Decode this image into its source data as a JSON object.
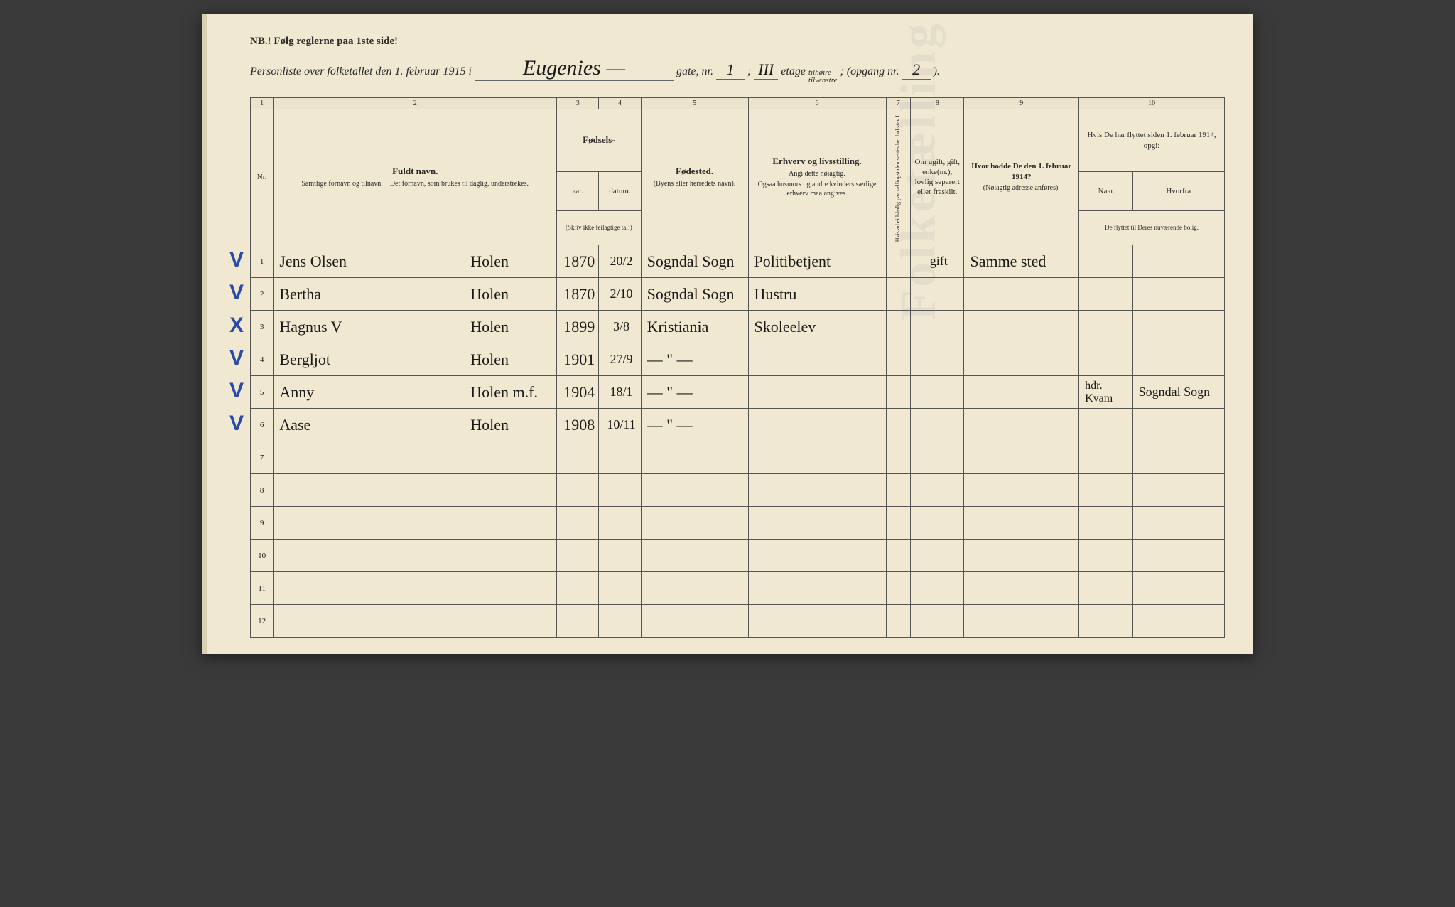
{
  "page": {
    "background_color": "#f0e8d0",
    "ink_color": "#1a1a1a",
    "print_color": "#2a2a2a",
    "blue_mark_color": "#2a4aa8"
  },
  "nb_text": "NB.! Følg reglerne paa 1ste side!",
  "header": {
    "prefix": "Personliste over folketallet den 1. februar 1915 i",
    "street": "Eugenies —",
    "gate_label": "gate, nr.",
    "gate_nr": "1",
    "semicolon": ";",
    "etage_val": "III",
    "etage_label": "etage",
    "side_top": "tilhøire",
    "side_bottom": "tilvenstre",
    "opgang_label": "; (opgang nr.",
    "opgang_nr": "2",
    "close": ")."
  },
  "column_numbers": [
    "1",
    "2",
    "3",
    "4",
    "5",
    "6",
    "7",
    "8",
    "9",
    "10"
  ],
  "columns": {
    "nr": "Nr.",
    "name_main": "Fuldt navn.",
    "name_sub1": "Samtlige fornavn og tilnavn.",
    "name_sub2": "Det fornavn, som brukes til daglig, understrekes.",
    "birth_main": "Fødsels-",
    "birth_year": "aar.",
    "birth_date": "datum.",
    "birth_note": "(Skriv ikke feilagtige tal!)",
    "place_main": "Fødested.",
    "place_sub": "(Byens eller herredets navn).",
    "occ_main": "Erhverv og livsstilling.",
    "occ_sub1": "Angi dette nøiagtig.",
    "occ_sub2": "Ogsaa husmors og andre kvinders særlige erhverv maa angives.",
    "col7": "Hvis arbeidsledig paa tællingstiden sættes her bokstav L.",
    "col8": "Om ugift, gift, enke(m.), lovlig separert eller fraskilt.",
    "col9_main": "Hvor bodde De den 1. februar 1914?",
    "col9_sub": "(Nøiagtig adresse anføres).",
    "col10_main": "Hvis De har flyttet siden 1. februar 1914, opgi:",
    "col10_naar": "Naar",
    "col10_fra": "Hvorfra",
    "col10_sub": "De flyttet til Deres nuværende bolig."
  },
  "rows": [
    {
      "nr": "1",
      "mark": "V",
      "first": "Jens Olsen",
      "last": "Holen",
      "year": "1870",
      "date": "20/2",
      "place": "Sogndal Sogn",
      "occ": "Politibetjent",
      "col7": "",
      "col8": "gift",
      "col9": "Samme sted",
      "naar": "",
      "fra": ""
    },
    {
      "nr": "2",
      "mark": "V",
      "first": "Bertha",
      "last": "Holen",
      "year": "1870",
      "date": "2/10",
      "place": "Sogndal Sogn",
      "occ": "Hustru",
      "col7": "",
      "col8": "",
      "col9": "",
      "naar": "",
      "fra": ""
    },
    {
      "nr": "3",
      "mark": "X",
      "first": "Hagnus V",
      "last": "Holen",
      "year": "1899",
      "date": "3/8",
      "place": "Kristiania",
      "occ": "Skoleelev",
      "col7": "",
      "col8": "",
      "col9": "",
      "naar": "",
      "fra": ""
    },
    {
      "nr": "4",
      "mark": "V",
      "first": "Bergljot",
      "last": "Holen",
      "year": "1901",
      "date": "27/9",
      "place": "— \" —",
      "occ": "",
      "col7": "",
      "col8": "",
      "col9": "",
      "naar": "",
      "fra": ""
    },
    {
      "nr": "5",
      "mark": "V",
      "first": "Anny",
      "last": "Holen m.f.",
      "year": "1904",
      "date": "18/1",
      "place": "— \" —",
      "occ": "",
      "col7": "",
      "col8": "",
      "col9": "",
      "naar": "hdr. Kvam",
      "fra": "Sogndal Sogn"
    },
    {
      "nr": "6",
      "mark": "V",
      "first": "Aase",
      "last": "Holen",
      "year": "1908",
      "date": "10/11",
      "place": "— \" —",
      "occ": "",
      "col7": "",
      "col8": "",
      "col9": "",
      "naar": "",
      "fra": ""
    }
  ],
  "empty_rows": [
    "7",
    "8",
    "9",
    "10",
    "11",
    "12"
  ],
  "watermark": "Folketælling"
}
